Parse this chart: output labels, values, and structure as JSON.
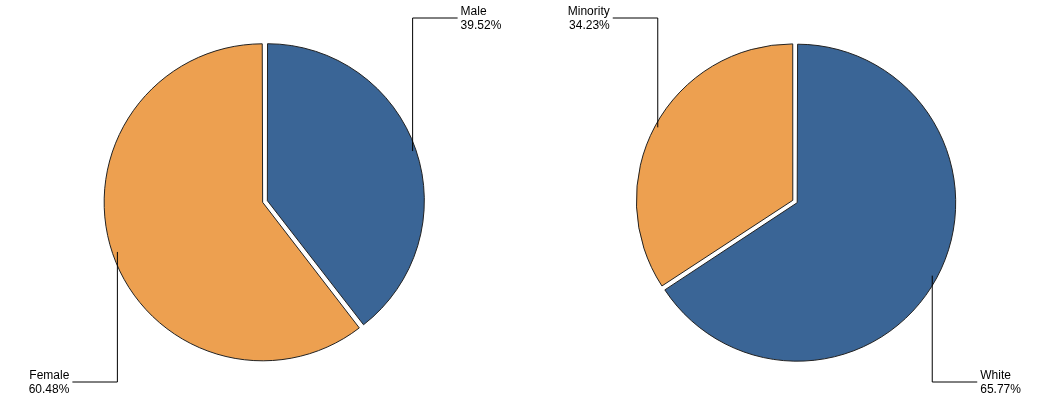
{
  "chart_data": [
    {
      "type": "pie",
      "categories": [
        "Male",
        "Female"
      ],
      "values": [
        39.52,
        60.48
      ],
      "colors": [
        "#3a6596",
        "#eda050"
      ],
      "value_labels": [
        "39.52%",
        "60.48%"
      ]
    },
    {
      "type": "pie",
      "categories": [
        "White",
        "Minority"
      ],
      "values": [
        65.77,
        34.23
      ],
      "colors": [
        "#3a6596",
        "#eda050"
      ],
      "value_labels": [
        "65.77%",
        "34.23%"
      ]
    }
  ]
}
